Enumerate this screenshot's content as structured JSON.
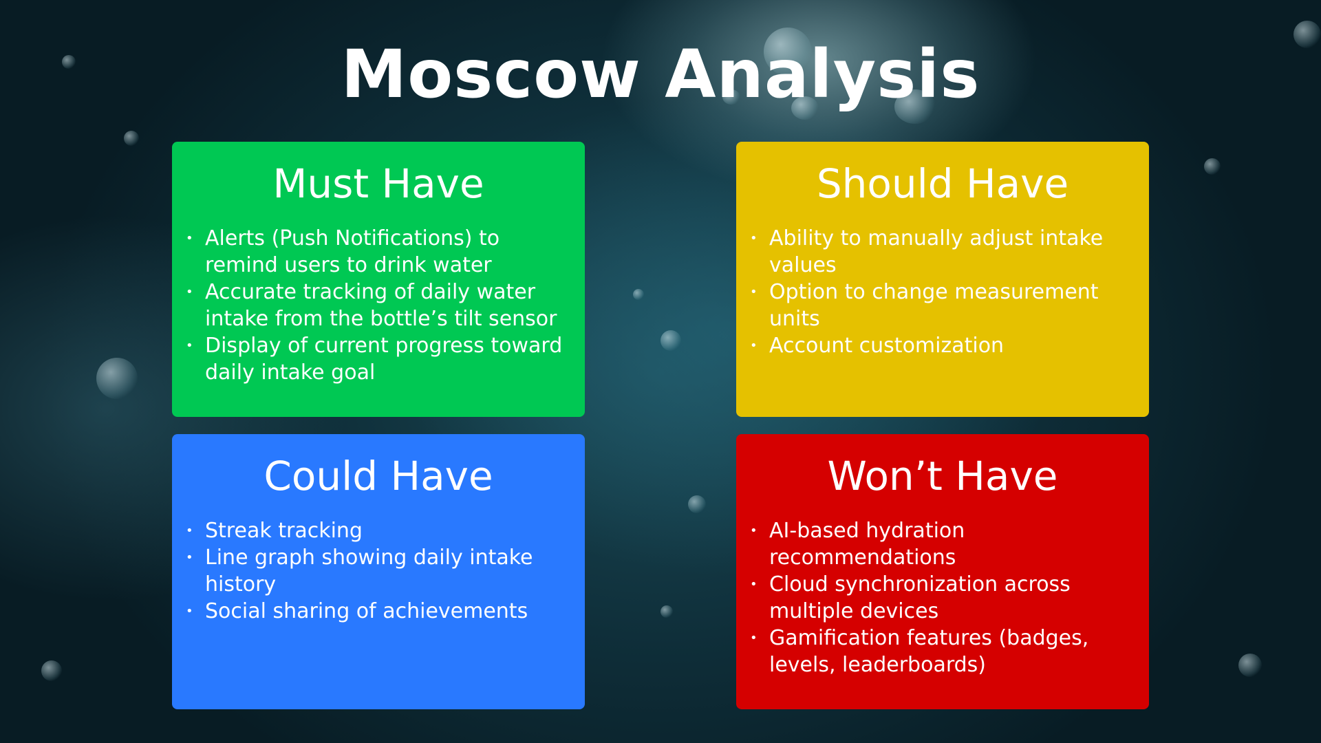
{
  "title": "Moscow Analysis",
  "colors": {
    "must": "#00c853",
    "should": "#e5c100",
    "could": "#2979ff",
    "wont": "#d50000"
  },
  "quadrants": [
    {
      "key": "must",
      "heading": "Must Have",
      "items": [
        "Alerts (Push Notifications) to remind users to drink water",
        "Accurate tracking of daily water intake from the bottle’s tilt sensor",
        "Display of current progress toward daily intake goal"
      ]
    },
    {
      "key": "should",
      "heading": "Should Have",
      "items": [
        "Ability to manually adjust intake values",
        "Option to change measurement units",
        "Account customization"
      ]
    },
    {
      "key": "could",
      "heading": "Could Have",
      "items": [
        "Streak tracking",
        "Line graph showing daily intake history",
        "Social sharing of achievements"
      ]
    },
    {
      "key": "wont",
      "heading": "Won’t Have",
      "items": [
        "AI-based hydration recommendations",
        "Cloud synchronization across multiple devices",
        "Gamification features (badges, levels, leaderboards)"
      ]
    }
  ]
}
